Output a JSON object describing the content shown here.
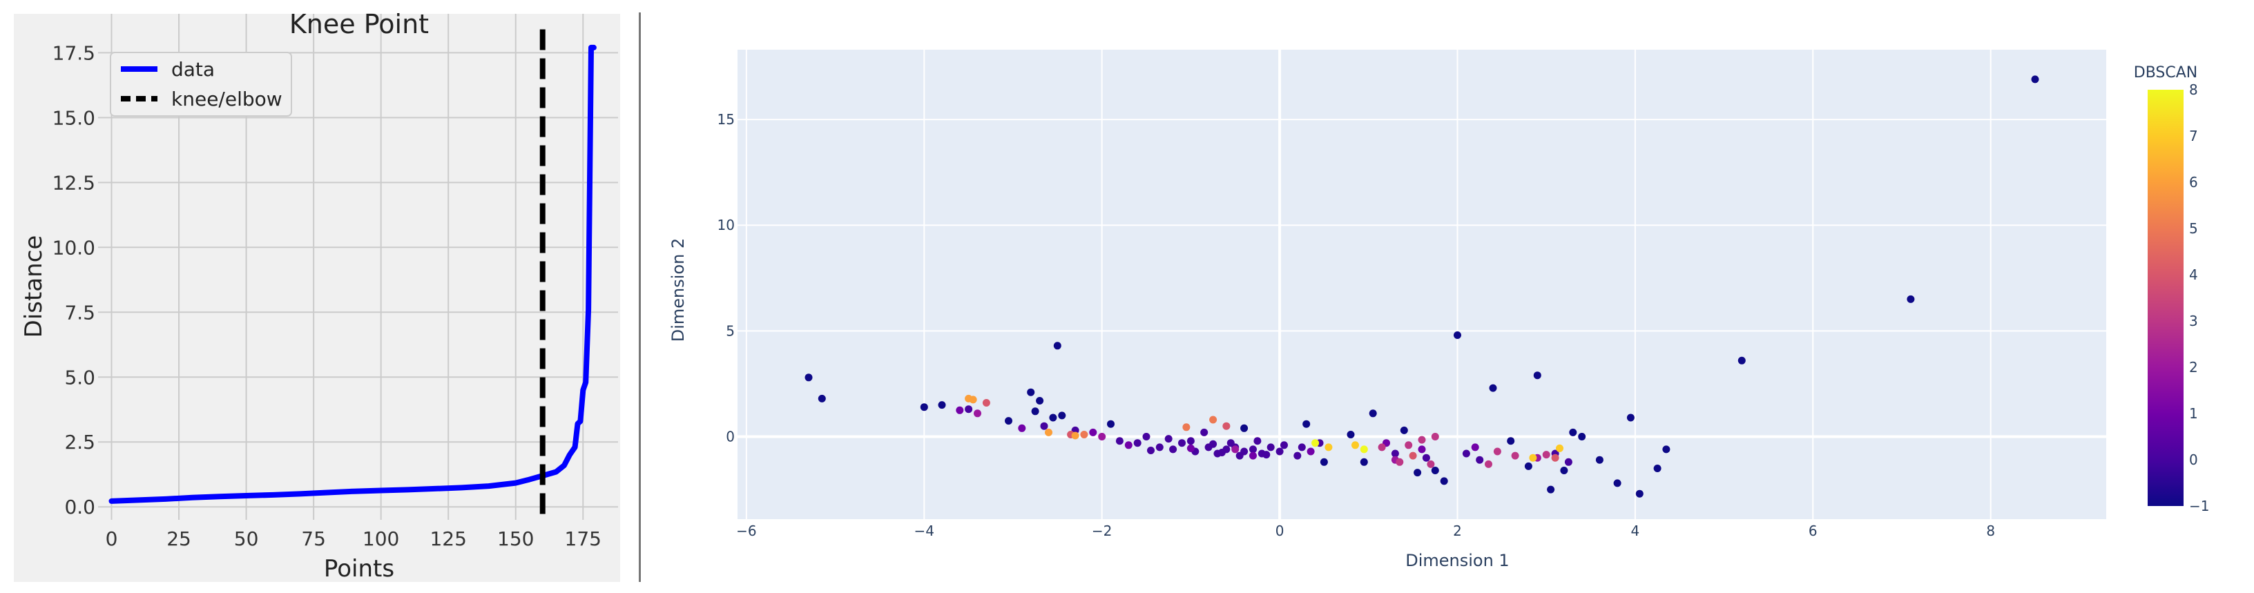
{
  "chart_data": [
    {
      "type": "line",
      "title": "Knee Point",
      "xlabel": "Points",
      "ylabel": "Distance",
      "xlim": [
        -5,
        188
      ],
      "ylim": [
        -0.5,
        19
      ],
      "xticks": [
        0,
        25,
        50,
        75,
        100,
        125,
        150,
        175
      ],
      "yticks": [
        0.0,
        2.5,
        5.0,
        7.5,
        10.0,
        12.5,
        15.0,
        17.5
      ],
      "ytick_labels": [
        "0.0",
        "2.5",
        "5.0",
        "7.5",
        "10.0",
        "12.5",
        "15.0",
        "17.5"
      ],
      "grid": true,
      "legend_position": "top-left",
      "legend": [
        "data",
        "knee/elbow"
      ],
      "series": [
        {
          "name": "data",
          "color": "#0000ff",
          "x": [
            0,
            10,
            20,
            30,
            40,
            50,
            60,
            70,
            80,
            90,
            100,
            110,
            120,
            130,
            140,
            150,
            155,
            160,
            165,
            168,
            170,
            172,
            173,
            174,
            175,
            176,
            177,
            178,
            179
          ],
          "y": [
            0.22,
            0.26,
            0.3,
            0.36,
            0.4,
            0.43,
            0.46,
            0.5,
            0.55,
            0.6,
            0.63,
            0.66,
            0.7,
            0.74,
            0.8,
            0.92,
            1.05,
            1.2,
            1.35,
            1.6,
            2.0,
            2.3,
            3.2,
            3.3,
            4.5,
            4.8,
            7.6,
            17.7,
            17.7
          ]
        }
      ],
      "vlines": [
        {
          "name": "knee/elbow",
          "x": 160,
          "y_range": [
            -0.5,
            18.4
          ],
          "style": "dashed",
          "color": "#000000"
        }
      ]
    },
    {
      "type": "scatter",
      "xlabel": "Dimension 1",
      "ylabel": "Dimension 2",
      "xlim": [
        -6.1,
        9.3
      ],
      "ylim": [
        -3.9,
        18.3
      ],
      "xticks": [
        -6,
        -4,
        -2,
        0,
        2,
        4,
        6,
        8
      ],
      "yticks": [
        0,
        5,
        10,
        15
      ],
      "grid": true,
      "colorbar": {
        "title": "DBSCAN",
        "min": -1,
        "max": 8,
        "ticks": [
          -1,
          0,
          1,
          2,
          3,
          4,
          5,
          6,
          7,
          8
        ],
        "colorscale": "plasma"
      },
      "points": [
        [
          8.5,
          16.9,
          -1
        ],
        [
          7.1,
          6.5,
          -1
        ],
        [
          5.2,
          3.6,
          -1
        ],
        [
          2.0,
          4.8,
          -1
        ],
        [
          -2.5,
          4.3,
          -1
        ],
        [
          -5.3,
          2.8,
          -1
        ],
        [
          -5.15,
          1.8,
          -1
        ],
        [
          2.9,
          2.9,
          -1
        ],
        [
          2.4,
          2.3,
          -1
        ],
        [
          -2.8,
          2.1,
          -1
        ],
        [
          -2.7,
          1.7,
          -1
        ],
        [
          -4.0,
          1.4,
          -1
        ],
        [
          -3.8,
          1.5,
          -1
        ],
        [
          -2.45,
          1.0,
          -1
        ],
        [
          -2.55,
          0.9,
          -1
        ],
        [
          -2.75,
          1.2,
          -1
        ],
        [
          -3.05,
          0.75,
          -1
        ],
        [
          1.05,
          1.1,
          -1
        ],
        [
          3.95,
          0.9,
          -1
        ],
        [
          4.05,
          -2.7,
          -1
        ],
        [
          3.05,
          -2.5,
          -1
        ],
        [
          3.8,
          -2.2,
          -1
        ],
        [
          4.25,
          -1.5,
          -1
        ],
        [
          4.35,
          -0.6,
          -1
        ],
        [
          0.3,
          0.6,
          -1
        ],
        [
          -0.4,
          0.4,
          -1
        ],
        [
          -1.9,
          0.6,
          -1
        ],
        [
          1.4,
          0.3,
          -1
        ],
        [
          1.55,
          -1.7,
          -1
        ],
        [
          1.75,
          -1.6,
          -1
        ],
        [
          1.85,
          -2.1,
          -1
        ],
        [
          2.8,
          -1.4,
          -1
        ],
        [
          3.2,
          -1.6,
          -1
        ],
        [
          3.6,
          -1.1,
          -1
        ],
        [
          0.95,
          -1.2,
          -1
        ],
        [
          0.5,
          -1.2,
          -1
        ],
        [
          2.6,
          -0.2,
          -1
        ],
        [
          3.4,
          0.0,
          -1
        ],
        [
          3.3,
          0.2,
          -1
        ],
        [
          0.8,
          0.1,
          -1
        ],
        [
          -3.5,
          1.3,
          0
        ],
        [
          -2.65,
          0.5,
          0
        ],
        [
          -2.3,
          0.3,
          0
        ],
        [
          -1.5,
          0.0,
          0
        ],
        [
          -1.0,
          -0.2,
          0
        ],
        [
          -0.8,
          -0.5,
          0
        ],
        [
          -0.6,
          -0.6,
          0
        ],
        [
          -0.4,
          -0.7,
          0
        ],
        [
          -0.2,
          -0.8,
          0
        ],
        [
          0.0,
          -0.7,
          0
        ],
        [
          0.2,
          -0.9,
          0
        ],
        [
          -1.2,
          -0.6,
          0
        ],
        [
          -1.8,
          -0.2,
          0
        ],
        [
          -0.95,
          -0.7,
          0
        ],
        [
          -0.7,
          -0.8,
          0
        ],
        [
          -0.5,
          -0.5,
          0
        ],
        [
          -0.3,
          -0.6,
          0
        ],
        [
          -0.1,
          -0.5,
          0
        ],
        [
          -1.35,
          -0.5,
          0
        ],
        [
          -1.6,
          -0.3,
          0
        ],
        [
          -1.45,
          -0.65,
          0
        ],
        [
          -1.1,
          -0.3,
          0
        ],
        [
          -0.85,
          0.2,
          0
        ],
        [
          -0.55,
          -0.3,
          0
        ],
        [
          -0.25,
          -0.2,
          0
        ],
        [
          0.05,
          -0.4,
          0
        ],
        [
          0.25,
          -0.5,
          0
        ],
        [
          0.45,
          -0.3,
          0
        ],
        [
          1.3,
          -0.8,
          0
        ],
        [
          1.65,
          -1.0,
          0
        ],
        [
          2.1,
          -0.8,
          0
        ],
        [
          2.25,
          -1.1,
          0
        ],
        [
          3.1,
          -0.8,
          0
        ],
        [
          3.25,
          -1.2,
          0
        ],
        [
          -0.75,
          -0.35,
          0
        ],
        [
          -0.15,
          -0.85,
          0
        ],
        [
          -1.25,
          -0.1,
          0
        ],
        [
          -0.65,
          -0.75,
          0
        ],
        [
          -0.45,
          -0.9,
          0
        ],
        [
          -3.6,
          1.25,
          1
        ],
        [
          -2.9,
          0.4,
          1
        ],
        [
          -1.7,
          -0.4,
          1
        ],
        [
          -0.3,
          -0.9,
          1
        ],
        [
          1.2,
          -0.3,
          1
        ],
        [
          2.2,
          -0.5,
          1
        ],
        [
          -2.1,
          0.2,
          1
        ],
        [
          -1.0,
          -0.55,
          1
        ],
        [
          0.35,
          -0.7,
          1
        ],
        [
          1.6,
          -0.6,
          1
        ],
        [
          -3.4,
          1.1,
          2
        ],
        [
          -2.0,
          0.0,
          2
        ],
        [
          -0.5,
          -0.6,
          2
        ],
        [
          1.3,
          -1.1,
          2
        ],
        [
          2.9,
          -1.0,
          2
        ],
        [
          1.45,
          -0.4,
          3
        ],
        [
          1.6,
          -0.15,
          3
        ],
        [
          1.15,
          -0.5,
          3
        ],
        [
          2.35,
          -1.3,
          3
        ],
        [
          1.35,
          -1.2,
          3
        ],
        [
          2.45,
          -0.7,
          3
        ],
        [
          2.65,
          -0.9,
          3
        ],
        [
          3.0,
          -0.85,
          3
        ],
        [
          1.7,
          -1.3,
          3
        ],
        [
          1.75,
          0.0,
          3
        ],
        [
          -0.6,
          0.5,
          4
        ],
        [
          -2.35,
          0.1,
          4
        ],
        [
          3.1,
          -1.0,
          4
        ],
        [
          1.5,
          -0.9,
          4
        ],
        [
          -3.3,
          1.6,
          4
        ],
        [
          -0.75,
          0.8,
          5
        ],
        [
          -1.05,
          0.45,
          5
        ],
        [
          -2.2,
          0.1,
          5
        ],
        [
          -3.5,
          1.8,
          6
        ],
        [
          -2.6,
          0.2,
          6
        ],
        [
          -3.45,
          1.75,
          6
        ],
        [
          -2.3,
          0.05,
          6
        ],
        [
          0.55,
          -0.5,
          7
        ],
        [
          0.85,
          -0.4,
          7
        ],
        [
          2.85,
          -1.0,
          7
        ],
        [
          3.15,
          -0.55,
          7
        ],
        [
          0.4,
          -0.3,
          8
        ],
        [
          0.95,
          -0.6,
          8
        ]
      ]
    }
  ]
}
